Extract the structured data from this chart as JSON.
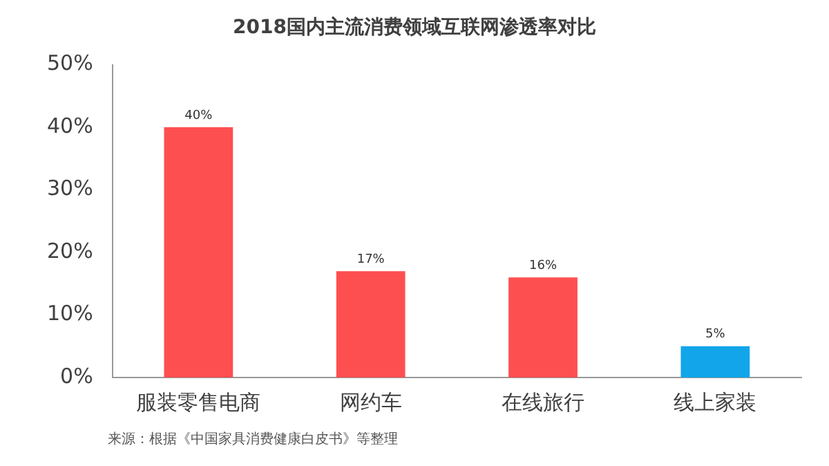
{
  "chart_data": {
    "type": "bar",
    "title": "2018国内主流消费领域互联网渗透率对比",
    "categories": [
      "服装零售电商",
      "网约车",
      "在线旅行",
      "线上家装"
    ],
    "values": [
      40,
      17,
      16,
      5
    ],
    "colors": [
      "#fe4f50",
      "#fe4f50",
      "#fe4f50",
      "#12a5ea"
    ],
    "value_labels": [
      "40%",
      "17%",
      "16%",
      "5%"
    ],
    "ylim": [
      0,
      50
    ],
    "yticks": [
      {
        "value": 0,
        "label": "0%"
      },
      {
        "value": 10,
        "label": "10%"
      },
      {
        "value": 20,
        "label": "20%"
      },
      {
        "value": 30,
        "label": "30%"
      },
      {
        "value": 40,
        "label": "40%"
      },
      {
        "value": 50,
        "label": "50%"
      }
    ],
    "grid": false,
    "legend": false,
    "annotations": [
      "来源：根据《中国家具消费健康白皮书》等整理"
    ]
  }
}
